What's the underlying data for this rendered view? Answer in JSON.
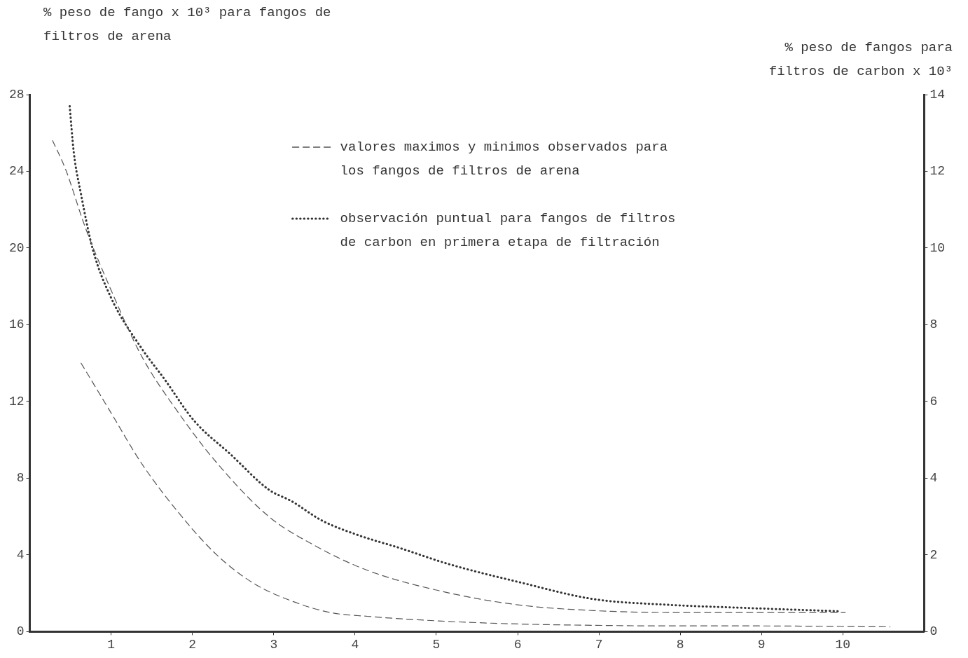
{
  "chart_data": {
    "type": "line",
    "ylabel": "% peso de fango x 10³ para fangos de filtros de arena",
    "y2label": "% peso de fangos para filtros de carbon x 10³",
    "xlim": [
      0,
      11
    ],
    "xticks": [
      1,
      2,
      3,
      4,
      5,
      6,
      7,
      8,
      9,
      10
    ],
    "ylim": [
      0,
      28
    ],
    "yticks": [
      0,
      4,
      8,
      12,
      16,
      20,
      24,
      28
    ],
    "y2lim": [
      0,
      14
    ],
    "y2ticks": [
      0,
      2,
      4,
      6,
      8,
      10,
      12,
      14
    ],
    "grid": false,
    "legend": "top",
    "marker": "none",
    "series": [
      {
        "name": "valores maximos y minimos observados para los fangos de filtros de arena",
        "color": "#555555",
        "line_style": "dashed",
        "x": [
          0.28,
          0.44,
          0.68,
          1.0,
          1.37,
          1.83,
          2.3,
          2.94,
          3.5,
          4.15,
          5.07,
          6.0,
          6.93,
          7.85,
          8.78,
          10.03
        ],
        "values": [
          25.6,
          24.1,
          21.1,
          17.8,
          14.4,
          11.4,
          8.8,
          6.0,
          4.5,
          3.2,
          2.1,
          1.4,
          1.1,
          1.0,
          1.0,
          1.0
        ]
      },
      {
        "color": "#555555",
        "line_style": "dashed",
        "x": [
          0.63,
          1.0,
          1.37,
          1.83,
          2.3,
          2.76,
          3.22,
          3.69,
          4.15,
          5.07,
          6.0,
          6.93,
          7.85,
          8.78,
          10.58
        ],
        "values": [
          14.0,
          11.4,
          8.8,
          6.2,
          4.0,
          2.5,
          1.6,
          1.0,
          0.8,
          0.55,
          0.4,
          0.33,
          0.3,
          0.3,
          0.25
        ]
      },
      {
        "name": "observación puntual para fangos de filtros de carbon en primera etapa de filtración",
        "color": "#333333",
        "line_style": "dotted",
        "axis": "y2",
        "x": [
          0.49,
          0.54,
          0.63,
          0.77,
          1.0,
          1.37,
          1.65,
          2.02,
          2.48,
          2.94,
          3.22,
          3.59,
          4.06,
          4.52,
          5.17,
          6.0,
          6.93,
          7.85,
          8.78,
          9.98
        ],
        "values": [
          13.7,
          12.5,
          11.4,
          10.0,
          8.7,
          7.4,
          6.6,
          5.5,
          4.6,
          3.7,
          3.4,
          2.9,
          2.5,
          2.2,
          1.75,
          1.3,
          0.85,
          0.7,
          0.62,
          0.53
        ]
      }
    ]
  }
}
